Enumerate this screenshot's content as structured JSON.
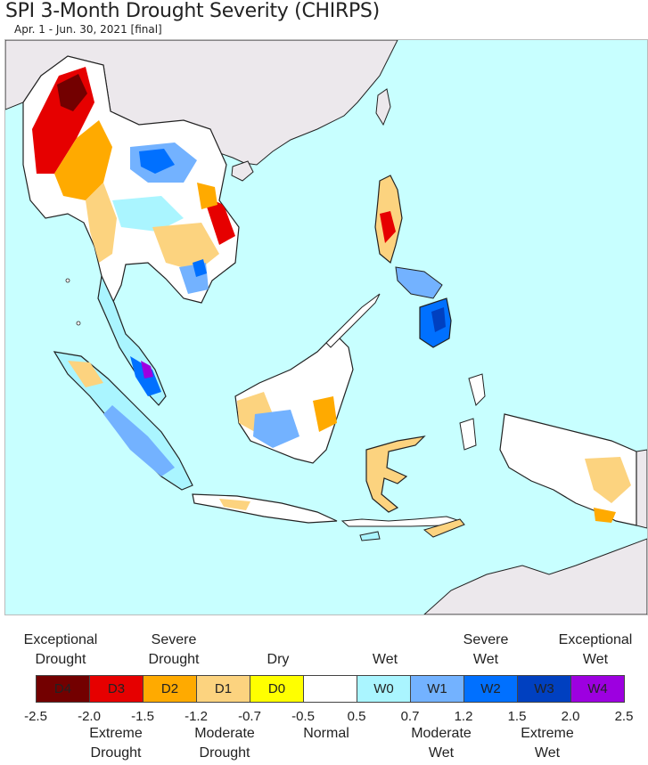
{
  "title": "SPI 3-Month Drought Severity (CHIRPS)",
  "subtitle": "Apr. 1 - Jun. 30, 2021 [final]",
  "colors": {
    "ocean": "#c8ffff",
    "land_outside": "#ece8ec",
    "normal": "#ffffff",
    "D4": "#730000",
    "D3": "#e60000",
    "D2": "#ffaa00",
    "D1": "#fcd37f",
    "D0": "#ffff00",
    "W0": "#aaf5ff",
    "W1": "#73b2ff",
    "W2": "#0070ff",
    "W3": "#0040c0",
    "W4": "#9d00e0"
  },
  "legend": {
    "top_labels": [
      {
        "text": "Exceptional\nDrought"
      },
      {
        "text": "Severe\nDrought"
      },
      {
        "text": "Dry"
      },
      {
        "text": "Wet"
      },
      {
        "text": "Severe\nWet"
      },
      {
        "text": "Exceptional\nWet"
      }
    ],
    "bottom_labels": [
      {
        "text": "Extreme\nDrought"
      },
      {
        "text": "Moderate\nDrought"
      },
      {
        "text": "Normal"
      },
      {
        "text": "Moderate\nWet"
      },
      {
        "text": "Extreme\nWet"
      }
    ],
    "classes": [
      {
        "code": "D4",
        "color": "#730000"
      },
      {
        "code": "D3",
        "color": "#e60000"
      },
      {
        "code": "D2",
        "color": "#ffaa00"
      },
      {
        "code": "D1",
        "color": "#fcd37f"
      },
      {
        "code": "D0",
        "color": "#ffff00"
      },
      {
        "code": "",
        "color": "#ffffff"
      },
      {
        "code": "W0",
        "color": "#aaf5ff"
      },
      {
        "code": "W1",
        "color": "#73b2ff"
      },
      {
        "code": "W2",
        "color": "#0070ff"
      },
      {
        "code": "W3",
        "color": "#0040c0"
      },
      {
        "code": "W4",
        "color": "#9d00e0"
      }
    ],
    "ticks": [
      "-2.5",
      "-2.0",
      "-1.5",
      "-1.2",
      "-0.7",
      "-0.5",
      "0.5",
      "0.7",
      "1.2",
      "1.5",
      "2.0",
      "2.5"
    ]
  }
}
